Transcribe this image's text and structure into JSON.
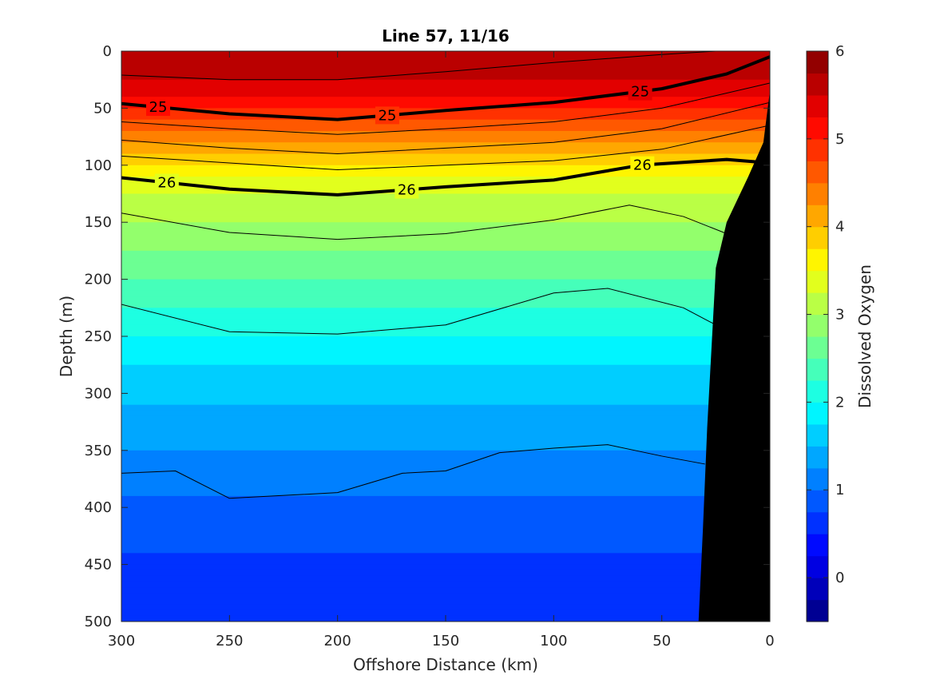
{
  "chart_data": {
    "type": "heatmap",
    "title": "Line 57, 11/16",
    "xlabel": "Offshore Distance (km)",
    "ylabel": "Depth (m)",
    "colorbar_label": "Dissolved Oxygen",
    "xlim": [
      300,
      0
    ],
    "ylim": [
      0,
      500
    ],
    "y_reversed": true,
    "x_reversed": true,
    "x_ticks": [
      300,
      250,
      200,
      150,
      100,
      50,
      0
    ],
    "y_ticks": [
      0,
      50,
      100,
      150,
      200,
      250,
      300,
      350,
      400,
      450,
      500
    ],
    "colorbar": {
      "range": [
        -0.5,
        6
      ],
      "step": 0.25,
      "ticks": [
        0,
        1,
        2,
        3,
        4,
        5,
        6
      ],
      "colormap": "jet"
    },
    "oxygen_profile": {
      "depth_m": [
        0,
        20,
        40,
        60,
        80,
        100,
        120,
        150,
        180,
        220,
        260,
        300,
        340,
        380,
        420,
        460,
        500
      ],
      "oxygen": [
        5.75,
        5.55,
        5.25,
        4.75,
        4.2,
        3.7,
        3.3,
        3.0,
        2.7,
        2.3,
        1.9,
        1.55,
        1.3,
        1.05,
        0.85,
        0.65,
        0.6
      ]
    },
    "density_contours": [
      {
        "sigma": 24.9,
        "labeled": false,
        "x": [
          300,
          250,
          200,
          150,
          100,
          50,
          25
        ],
        "y": [
          21,
          25,
          25,
          18,
          10,
          3,
          0
        ]
      },
      {
        "sigma": 25.0,
        "labeled": true,
        "label_x": [
          283,
          177,
          60
        ],
        "x": [
          300,
          250,
          200,
          150,
          100,
          50,
          20,
          0
        ],
        "y": [
          46,
          55,
          60,
          52,
          45,
          33,
          20,
          5
        ]
      },
      {
        "sigma": 25.3,
        "labeled": false,
        "x": [
          300,
          250,
          200,
          150,
          100,
          50,
          0
        ],
        "y": [
          62,
          68,
          73,
          68,
          62,
          50,
          28
        ]
      },
      {
        "sigma": 25.6,
        "labeled": false,
        "x": [
          300,
          250,
          200,
          150,
          100,
          50,
          0
        ],
        "y": [
          78,
          85,
          90,
          85,
          80,
          68,
          45
        ]
      },
      {
        "sigma": 25.8,
        "labeled": false,
        "x": [
          300,
          250,
          200,
          150,
          100,
          50,
          0
        ],
        "y": [
          92,
          98,
          104,
          100,
          96,
          86,
          65
        ]
      },
      {
        "sigma": 26.0,
        "labeled": true,
        "label_x": [
          279,
          168,
          59
        ],
        "x": [
          300,
          250,
          200,
          150,
          100,
          60,
          20,
          0
        ],
        "y": [
          111,
          121,
          126,
          119,
          113,
          100,
          95,
          98
        ]
      },
      {
        "sigma": 26.3,
        "labeled": false,
        "x": [
          300,
          250,
          200,
          150,
          100,
          65,
          40,
          20
        ],
        "y": [
          142,
          159,
          165,
          160,
          148,
          135,
          145,
          160
        ]
      },
      {
        "sigma": 26.5,
        "labeled": false,
        "x": [
          300,
          250,
          200,
          150,
          100,
          75,
          40,
          25
        ],
        "y": [
          222,
          246,
          248,
          240,
          212,
          208,
          225,
          240
        ]
      },
      {
        "sigma": 26.7,
        "labeled": false,
        "x": [
          300,
          275,
          250,
          200,
          170,
          150,
          125,
          100,
          75,
          50,
          30
        ],
        "y": [
          370,
          368,
          392,
          387,
          370,
          368,
          352,
          348,
          345,
          355,
          362
        ]
      }
    ],
    "bathymetry": {
      "x": [
        0,
        3,
        10,
        20,
        25,
        29,
        31,
        33
      ],
      "depth_m": [
        35,
        80,
        110,
        150,
        190,
        330,
        420,
        500
      ]
    }
  }
}
